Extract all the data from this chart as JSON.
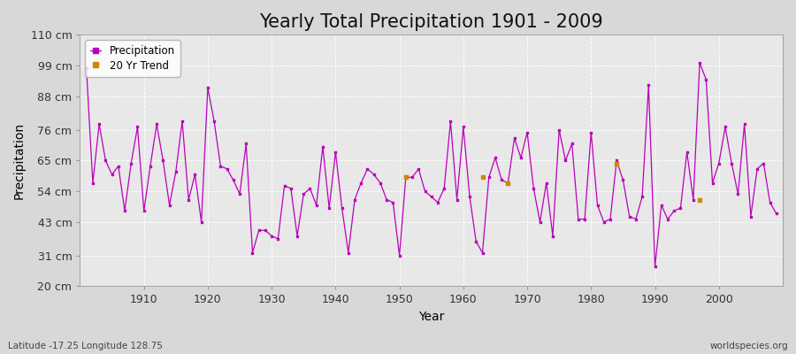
{
  "title": "Yearly Total Precipitation 1901 - 2009",
  "xlabel": "Year",
  "ylabel": "Precipitation",
  "lat_lon_text": "Latitude -17.25 Longitude 128.75",
  "watermark": "worldspecies.org",
  "years": [
    1901,
    1902,
    1903,
    1904,
    1905,
    1906,
    1907,
    1908,
    1909,
    1910,
    1911,
    1912,
    1913,
    1914,
    1915,
    1916,
    1917,
    1918,
    1919,
    1920,
    1921,
    1922,
    1923,
    1924,
    1925,
    1926,
    1927,
    1928,
    1929,
    1930,
    1931,
    1932,
    1933,
    1934,
    1935,
    1936,
    1937,
    1938,
    1939,
    1940,
    1941,
    1942,
    1943,
    1944,
    1945,
    1946,
    1947,
    1948,
    1949,
    1950,
    1951,
    1952,
    1953,
    1954,
    1955,
    1956,
    1957,
    1958,
    1959,
    1960,
    1961,
    1962,
    1963,
    1964,
    1965,
    1966,
    1967,
    1968,
    1969,
    1970,
    1971,
    1972,
    1973,
    1974,
    1975,
    1976,
    1977,
    1978,
    1979,
    1980,
    1981,
    1982,
    1983,
    1984,
    1985,
    1986,
    1987,
    1988,
    1989,
    1990,
    1991,
    1992,
    1993,
    1994,
    1995,
    1996,
    1997,
    1998,
    1999,
    2000,
    2001,
    2002,
    2003,
    2004,
    2005,
    2006,
    2007,
    2008,
    2009
  ],
  "precip": [
    98,
    57,
    78,
    65,
    60,
    63,
    47,
    64,
    77,
    47,
    63,
    78,
    65,
    49,
    61,
    79,
    51,
    60,
    43,
    91,
    79,
    63,
    62,
    58,
    53,
    71,
    32,
    40,
    40,
    38,
    37,
    56,
    55,
    38,
    53,
    55,
    49,
    70,
    48,
    68,
    48,
    32,
    51,
    57,
    62,
    60,
    57,
    51,
    50,
    31,
    59,
    59,
    62,
    54,
    52,
    50,
    55,
    79,
    51,
    77,
    52,
    36,
    32,
    59,
    66,
    58,
    57,
    73,
    66,
    75,
    55,
    43,
    57,
    38,
    76,
    65,
    71,
    44,
    44,
    75,
    49,
    43,
    44,
    65,
    58,
    45,
    44,
    52,
    92,
    27,
    49,
    44,
    47,
    48,
    68,
    51,
    100,
    94,
    57,
    64,
    77,
    64,
    53,
    78,
    45,
    62,
    64,
    50,
    46
  ],
  "trend_isolated_years": [
    1951,
    1963,
    1967,
    1984,
    1997
  ],
  "trend_isolated_vals": [
    59,
    59,
    57,
    64,
    51
  ],
  "line_color": "#bb00bb",
  "trend_color": "#cc8800",
  "bg_color": "#d8d8d8",
  "plot_bg_color": "#e8e8e8",
  "ylim": [
    20,
    110
  ],
  "yticks": [
    20,
    31,
    43,
    54,
    65,
    76,
    88,
    99,
    110
  ],
  "ytick_labels": [
    "20 cm",
    "31 cm",
    "43 cm",
    "54 cm",
    "65 cm",
    "76 cm",
    "88 cm",
    "99 cm",
    "110 cm"
  ],
  "xticks": [
    1910,
    1920,
    1930,
    1940,
    1950,
    1960,
    1970,
    1980,
    1990,
    2000
  ],
  "xlim": [
    1900,
    2010
  ],
  "title_fontsize": 15,
  "axis_fontsize": 10,
  "tick_fontsize": 9,
  "legend_fontsize": 8.5
}
